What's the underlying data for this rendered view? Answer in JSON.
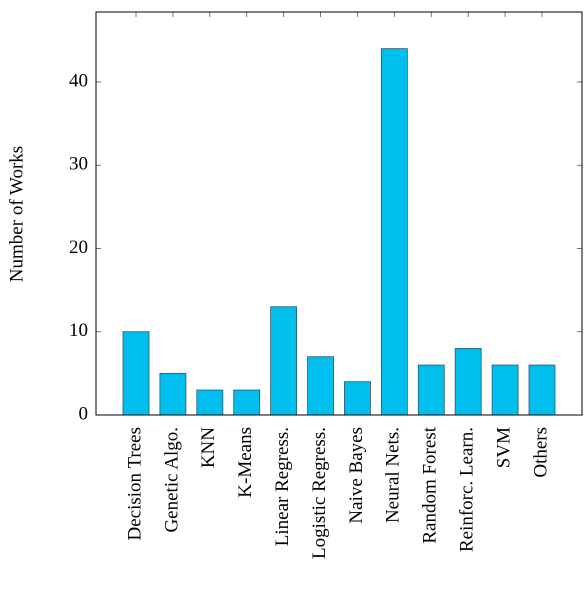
{
  "chart_data": {
    "type": "bar",
    "y_label": "Number of Works",
    "categories": [
      "Decision Trees",
      "Genetic Algo.",
      "KNN",
      "K-Means",
      "Linear Regress.",
      "Logistic Regress.",
      "Naive Bayes",
      "Neural Nets.",
      "Random Forest",
      "Reinforc. Learn.",
      "SVM",
      "Others"
    ],
    "values": [
      10,
      5,
      3,
      3,
      13,
      7,
      4,
      44,
      6,
      8,
      6,
      6
    ],
    "color": "#00bfef",
    "ylim": [
      0,
      48.4
    ],
    "yticks": [
      0,
      10,
      20,
      30,
      40
    ],
    "grid": false
  }
}
